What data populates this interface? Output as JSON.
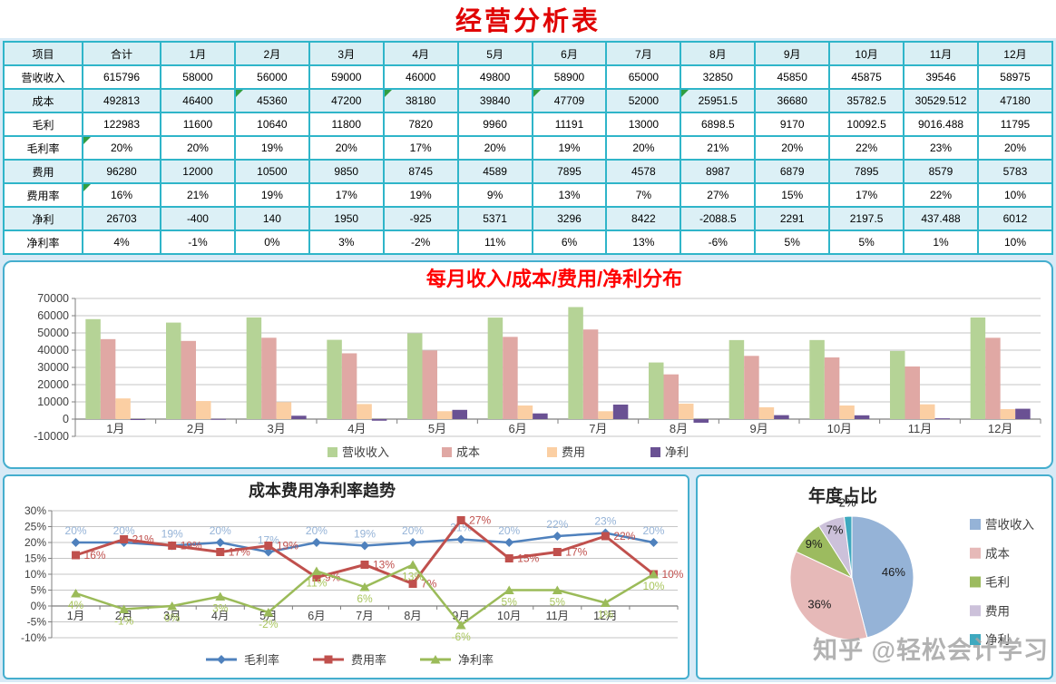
{
  "page_title": "经营分析表",
  "watermark": "知乎 @轻松会计学习",
  "colors": {
    "main_title": "#E00404",
    "bar_title": "#FF0000",
    "table_border": "#2FB5C9",
    "table_header_bg": "#D9EFF4",
    "table_row_light": "#DCF0F6",
    "panel_border": "#45AECE",
    "background_gap": "#D8EAF6",
    "grid": "#C6C6C6",
    "axis": "#7F7F7F",
    "watermark": "#A5A5A5",
    "comment_triangle": "#2F9E41"
  },
  "table": {
    "columns": [
      "项目",
      "合计",
      "1月",
      "2月",
      "3月",
      "4月",
      "5月",
      "6月",
      "7月",
      "8月",
      "9月",
      "10月",
      "11月",
      "12月"
    ],
    "rows": [
      {
        "label": "营收收入",
        "values": [
          "615796",
          "58000",
          "56000",
          "59000",
          "46000",
          "49800",
          "58900",
          "65000",
          "32850",
          "45850",
          "45875",
          "39546",
          "58975"
        ]
      },
      {
        "label": "成本",
        "values": [
          "492813",
          "46400",
          "45360",
          "47200",
          "38180",
          "39840",
          "47709",
          "52000",
          "25951.5",
          "36680",
          "35782.5",
          "30529.512",
          "47180"
        ]
      },
      {
        "label": "毛利",
        "values": [
          "122983",
          "11600",
          "10640",
          "11800",
          "7820",
          "9960",
          "11191",
          "13000",
          "6898.5",
          "9170",
          "10092.5",
          "9016.488",
          "11795"
        ]
      },
      {
        "label": "毛利率",
        "values": [
          "20%",
          "20%",
          "19%",
          "20%",
          "17%",
          "20%",
          "19%",
          "20%",
          "21%",
          "20%",
          "22%",
          "23%",
          "20%"
        ]
      },
      {
        "label": "费用",
        "values": [
          "96280",
          "12000",
          "10500",
          "9850",
          "8745",
          "4589",
          "7895",
          "4578",
          "8987",
          "6879",
          "7895",
          "8579",
          "5783"
        ]
      },
      {
        "label": "费用率",
        "values": [
          "16%",
          "21%",
          "19%",
          "17%",
          "19%",
          "9%",
          "13%",
          "7%",
          "27%",
          "15%",
          "17%",
          "22%",
          "10%"
        ]
      },
      {
        "label": "净利",
        "values": [
          "26703",
          "-400",
          "140",
          "1950",
          "-925",
          "5371",
          "3296",
          "8422",
          "-2088.5",
          "2291",
          "2197.5",
          "437.488",
          "6012"
        ]
      },
      {
        "label": "净利率",
        "values": [
          "4%",
          "-1%",
          "0%",
          "3%",
          "-2%",
          "11%",
          "6%",
          "13%",
          "-6%",
          "5%",
          "5%",
          "1%",
          "10%"
        ]
      }
    ],
    "comment_cells": [
      [
        1,
        2
      ],
      [
        1,
        4
      ],
      [
        1,
        6
      ],
      [
        1,
        8
      ],
      [
        3,
        0
      ],
      [
        5,
        0
      ]
    ]
  },
  "chart_data": [
    {
      "type": "bar",
      "title": "每月收入/成本/费用/净利分布",
      "title_color": "#FF0000",
      "categories": [
        "1月",
        "2月",
        "3月",
        "4月",
        "5月",
        "6月",
        "7月",
        "8月",
        "9月",
        "10月",
        "11月",
        "12月"
      ],
      "series": [
        {
          "name": "营收收入",
          "color": "#B5D396",
          "values": [
            58000,
            56000,
            59000,
            46000,
            49800,
            58900,
            65000,
            32850,
            45850,
            45875,
            39546,
            58975
          ]
        },
        {
          "name": "成本",
          "color": "#E0A8A4",
          "values": [
            46400,
            45360,
            47200,
            38180,
            39840,
            47709,
            52000,
            25951.5,
            36680,
            35782.5,
            30529.512,
            47180
          ]
        },
        {
          "name": "费用",
          "color": "#FBCFA3",
          "values": [
            12000,
            10500,
            9850,
            8745,
            4589,
            7895,
            4578,
            8987,
            6879,
            7895,
            8579,
            5783
          ]
        },
        {
          "name": "净利",
          "color": "#6A5193",
          "values": [
            -400,
            140,
            1950,
            -925,
            5371,
            3296,
            8422,
            -2088.5,
            2291,
            2197.5,
            437.488,
            6012
          ]
        }
      ],
      "ylim": [
        -10000,
        70000
      ],
      "ytick_step": 10000,
      "grid": true,
      "legend_position": "bottom"
    },
    {
      "type": "line",
      "title": "成本费用净利率趋势",
      "title_color": "#262626",
      "note": "first point of each series is the 合计 (total) value, series shifted one position right of table months",
      "categories": [
        "1月",
        "2月",
        "3月",
        "4月",
        "5月",
        "6月",
        "7月",
        "8月",
        "9月",
        "10月",
        "11月",
        "12月",
        ""
      ],
      "series": [
        {
          "name": "毛利率",
          "color": "#4F81BD",
          "marker": "diamond",
          "label_color": "#95B3D7",
          "values": [
            20,
            20,
            19,
            20,
            17,
            20,
            19,
            20,
            21,
            20,
            22,
            23,
            20
          ]
        },
        {
          "name": "费用率",
          "color": "#C0504D",
          "marker": "square",
          "label_color": "#C0504D",
          "values": [
            16,
            21,
            19,
            17,
            19,
            9,
            13,
            7,
            27,
            15,
            17,
            22,
            10
          ]
        },
        {
          "name": "净利率",
          "color": "#9BBB59",
          "marker": "triangle",
          "label_color": "#A9C65D",
          "values": [
            4,
            -1,
            0,
            3,
            -2,
            11,
            6,
            13,
            -6,
            5,
            5,
            1,
            10
          ]
        }
      ],
      "unit": "%",
      "ylim": [
        -10,
        30
      ],
      "ytick_step": 5,
      "grid": true,
      "legend_position": "bottom",
      "data_labels": true
    },
    {
      "type": "pie",
      "title": "年度占比",
      "title_color": "#262626",
      "labels": [
        "营收收入",
        "成本",
        "毛利",
        "费用",
        "净利"
      ],
      "values": [
        46,
        36,
        9,
        7,
        2
      ],
      "unit": "%",
      "colors": [
        "#95B3D7",
        "#E6B9B8",
        "#9CBB5F",
        "#CCC1DA",
        "#3EA9BF"
      ],
      "legend_position": "right",
      "start_angle": "top",
      "direction": "clockwise"
    }
  ]
}
